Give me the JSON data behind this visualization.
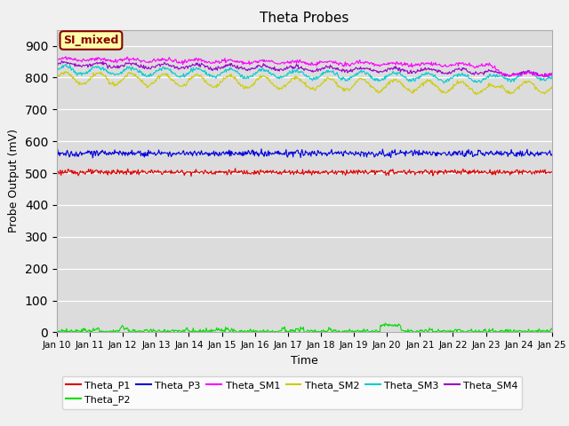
{
  "title": "Theta Probes",
  "ylabel": "Probe Output (mV)",
  "xlabel": "Time",
  "ylim": [
    0,
    950
  ],
  "yticks": [
    0,
    100,
    200,
    300,
    400,
    500,
    600,
    700,
    800,
    900
  ],
  "xtick_labels": [
    "Jan 10",
    "Jan 11",
    "Jan 12",
    "Jan 13",
    "Jan 14",
    "Jan 15",
    "Jan 16",
    "Jan 17",
    "Jan 18",
    "Jan 19",
    "Jan 20",
    "Jan 21",
    "Jan 22",
    "Jan 23",
    "Jan 24",
    "Jan 25"
  ],
  "bg_color": "#dcdcdc",
  "fig_color": "#f0f0f0",
  "annotation_text": "SI_mixed",
  "annotation_bg": "#ffffaa",
  "annotation_fg": "#880000",
  "series": {
    "Theta_P1": {
      "color": "#dd0000",
      "base": 503,
      "noise": 4,
      "oscillation": 0,
      "trend": 0,
      "drop": false
    },
    "Theta_P2": {
      "color": "#00dd00",
      "base": 3,
      "noise": 6,
      "oscillation": 0,
      "trend": 0,
      "drop": false
    },
    "Theta_P3": {
      "color": "#0000dd",
      "base": 562,
      "noise": 5,
      "oscillation": 0,
      "trend": 0,
      "drop": false
    },
    "Theta_SM1": {
      "color": "#ff00ff",
      "base": 858,
      "noise": 3,
      "oscillation": 4,
      "trend": -1.5,
      "drop": true,
      "drop_day": 13.1,
      "drop_val": 810
    },
    "Theta_SM2": {
      "color": "#cccc00",
      "base": 800,
      "noise": 3,
      "oscillation": 18,
      "trend": -2.5,
      "drop": true,
      "drop_day": 13.1,
      "drop_val": 770
    },
    "Theta_SM3": {
      "color": "#00cccc",
      "base": 824,
      "noise": 3,
      "oscillation": 12,
      "trend": -2.0,
      "drop": true,
      "drop_day": 13.1,
      "drop_val": 805
    },
    "Theta_SM4": {
      "color": "#9900cc",
      "base": 842,
      "noise": 3,
      "oscillation": 6,
      "trend": -1.8,
      "drop": true,
      "drop_day": 13.1,
      "drop_val": 812
    }
  },
  "legend_order": [
    "Theta_P1",
    "Theta_P2",
    "Theta_P3",
    "Theta_SM1",
    "Theta_SM2",
    "Theta_SM3",
    "Theta_SM4"
  ]
}
